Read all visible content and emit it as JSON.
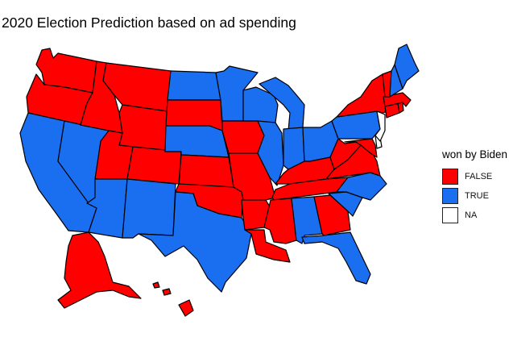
{
  "title": "2020 Election Prediction based on ad spending",
  "colors": {
    "false": "#ff0000",
    "true": "#1a6ef0",
    "na": "#ffffff",
    "border": "#000000"
  },
  "legend": {
    "title": "won by Biden",
    "items": [
      {
        "label": "FALSE",
        "color": "#ff0000"
      },
      {
        "label": "TRUE",
        "color": "#1a6ef0"
      },
      {
        "label": "NA",
        "color": "#ffffff"
      }
    ]
  },
  "states": {
    "WA": "FALSE",
    "OR": "FALSE",
    "CA": "TRUE",
    "NV": "TRUE",
    "ID": "FALSE",
    "MT": "FALSE",
    "WY": "FALSE",
    "UT": "FALSE",
    "AZ": "TRUE",
    "CO": "FALSE",
    "NM": "TRUE",
    "ND": "TRUE",
    "SD": "FALSE",
    "NE": "TRUE",
    "KS": "FALSE",
    "OK": "FALSE",
    "TX": "TRUE",
    "MN": "TRUE",
    "IA": "FALSE",
    "MO": "FALSE",
    "AR": "FALSE",
    "LA": "FALSE",
    "WI": "TRUE",
    "IL": "TRUE",
    "MI": "TRUE",
    "IN": "TRUE",
    "OH": "TRUE",
    "KY": "FALSE",
    "TN": "FALSE",
    "MS": "FALSE",
    "AL": "TRUE",
    "GA": "FALSE",
    "FL": "TRUE",
    "SC": "TRUE",
    "NC": "TRUE",
    "VA": "FALSE",
    "WV": "FALSE",
    "PA": "TRUE",
    "NY": "FALSE",
    "VT": "FALSE",
    "NH": "TRUE",
    "ME": "TRUE",
    "MA": "FALSE",
    "CT": "FALSE",
    "RI": "FALSE",
    "NJ": "NA",
    "DE": "NA",
    "MD": "FALSE",
    "AK": "FALSE",
    "HI": "FALSE"
  }
}
